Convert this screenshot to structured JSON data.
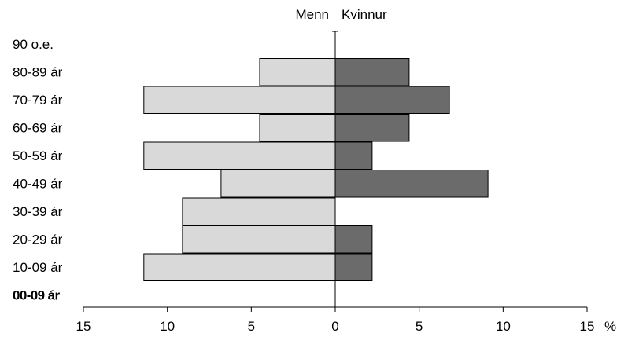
{
  "chart_data": {
    "type": "bar",
    "orientation": "horizontal-butterfly",
    "categories": [
      "90 o.e.",
      "80-89 ár",
      "70-79 ár",
      "60-69 ár",
      "50-59 ár",
      "40-49 ár",
      "30-39 ár",
      "20-29 ár",
      "10-09 ár",
      "00-09 ár"
    ],
    "category_emphasis": [
      false,
      false,
      false,
      false,
      false,
      false,
      false,
      false,
      false,
      true
    ],
    "series": [
      {
        "name": "Menn",
        "side": "left",
        "color": "#d9d9d9",
        "values": [
          0,
          4.5,
          11.4,
          4.5,
          11.4,
          6.8,
          9.1,
          9.1,
          11.4,
          0
        ]
      },
      {
        "name": "Kvinnur",
        "side": "right",
        "color": "#6b6b6b",
        "values": [
          0,
          4.4,
          6.8,
          4.4,
          2.2,
          9.1,
          0,
          2.2,
          2.2,
          0
        ]
      }
    ],
    "xlim": [
      -15,
      15
    ],
    "xticks": [
      -15,
      -10,
      -5,
      0,
      5,
      10,
      15
    ],
    "xtick_labels": [
      "15",
      "10",
      "5",
      "0",
      "5",
      "10",
      "15"
    ],
    "xlabel": "%",
    "title": "",
    "grid": false
  }
}
